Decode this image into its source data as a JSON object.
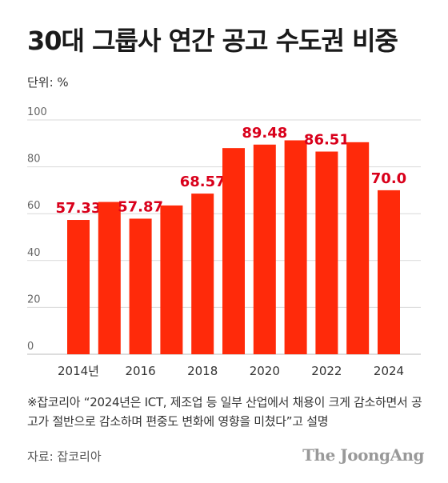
{
  "title": "30대 그룹사 연간 공고 수도권 비중",
  "unit_label": "단위: %",
  "footnote": "※잡코리아 “2024년은 ICT, 제조업 등 일부 산업에서 채용이 크게 감소하면서 공고가 절반으로 감소하며 편중도 변화에 영향을 미쳤다”고 설명",
  "source": "자료: 잡코리아",
  "brand": "The JoongAng",
  "colors": {
    "bar": "#ff2a0a",
    "label": "#d9001b",
    "grid": "#d9d9d9"
  },
  "chart_data": {
    "type": "bar",
    "title": "30대 그룹사 연간 공고 수도권 비중",
    "categories": [
      "2014",
      "2015",
      "2016",
      "2017",
      "2018",
      "2019",
      "2020",
      "2021",
      "2022",
      "2023",
      "2024"
    ],
    "values": [
      57.33,
      65.0,
      57.87,
      63.5,
      68.57,
      88.0,
      89.48,
      91.3,
      86.51,
      90.5,
      70.0
    ],
    "data_labels": [
      "57.33",
      "",
      "57.87",
      "",
      "68.57",
      "",
      "89.48",
      "",
      "86.51",
      "",
      "70.0"
    ],
    "x_tick_labels": [
      "2014년",
      "",
      "2016",
      "",
      "2018",
      "",
      "2020",
      "",
      "2022",
      "",
      "2024"
    ],
    "y_ticks": [
      0,
      20,
      40,
      60,
      80,
      100
    ],
    "ylim": [
      0,
      100
    ],
    "ylabel": "단위: %",
    "grid": true
  }
}
